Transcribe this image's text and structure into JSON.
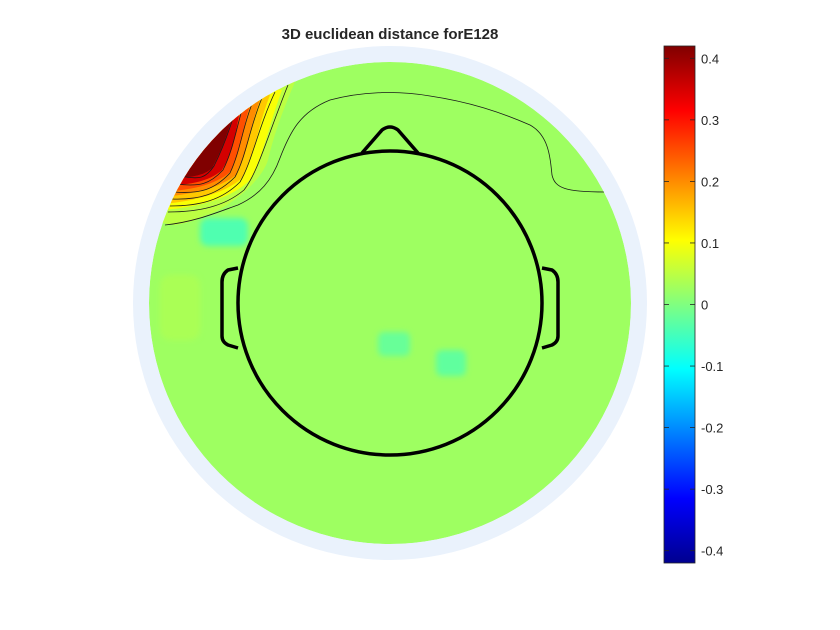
{
  "chart_data": {
    "type": "heatmap",
    "subtype": "eeg-topographic-scalp-map",
    "title": "3D euclidean distance forE128",
    "xlabel": "",
    "ylabel": "",
    "colormap": "jet",
    "clim": [
      -0.42,
      0.42
    ],
    "colorbar": {
      "location": "right",
      "ticks": [
        0.4,
        0.3,
        0.2,
        0.1,
        0,
        -0.1,
        -0.2,
        -0.3,
        -0.4
      ],
      "tick_labels": [
        "0.4",
        "0.3",
        "0.2",
        "0.1",
        "0",
        "-0.1",
        "-0.2",
        "-0.3",
        "-0.4"
      ]
    },
    "background_value": 0.025,
    "hotspots": [
      {
        "region": "front-left edge",
        "peak_value": 0.42
      },
      {
        "region": "left mid-frontal",
        "value": -0.04
      },
      {
        "region": "left temporal",
        "value": 0.035
      },
      {
        "region": "central",
        "value": -0.02
      },
      {
        "region": "right central",
        "value": -0.025
      }
    ],
    "contour_levels": [
      0.05,
      0.1,
      0.15,
      0.2,
      0.25,
      0.3,
      0.35
    ],
    "head_outline": true,
    "grid": false
  }
}
